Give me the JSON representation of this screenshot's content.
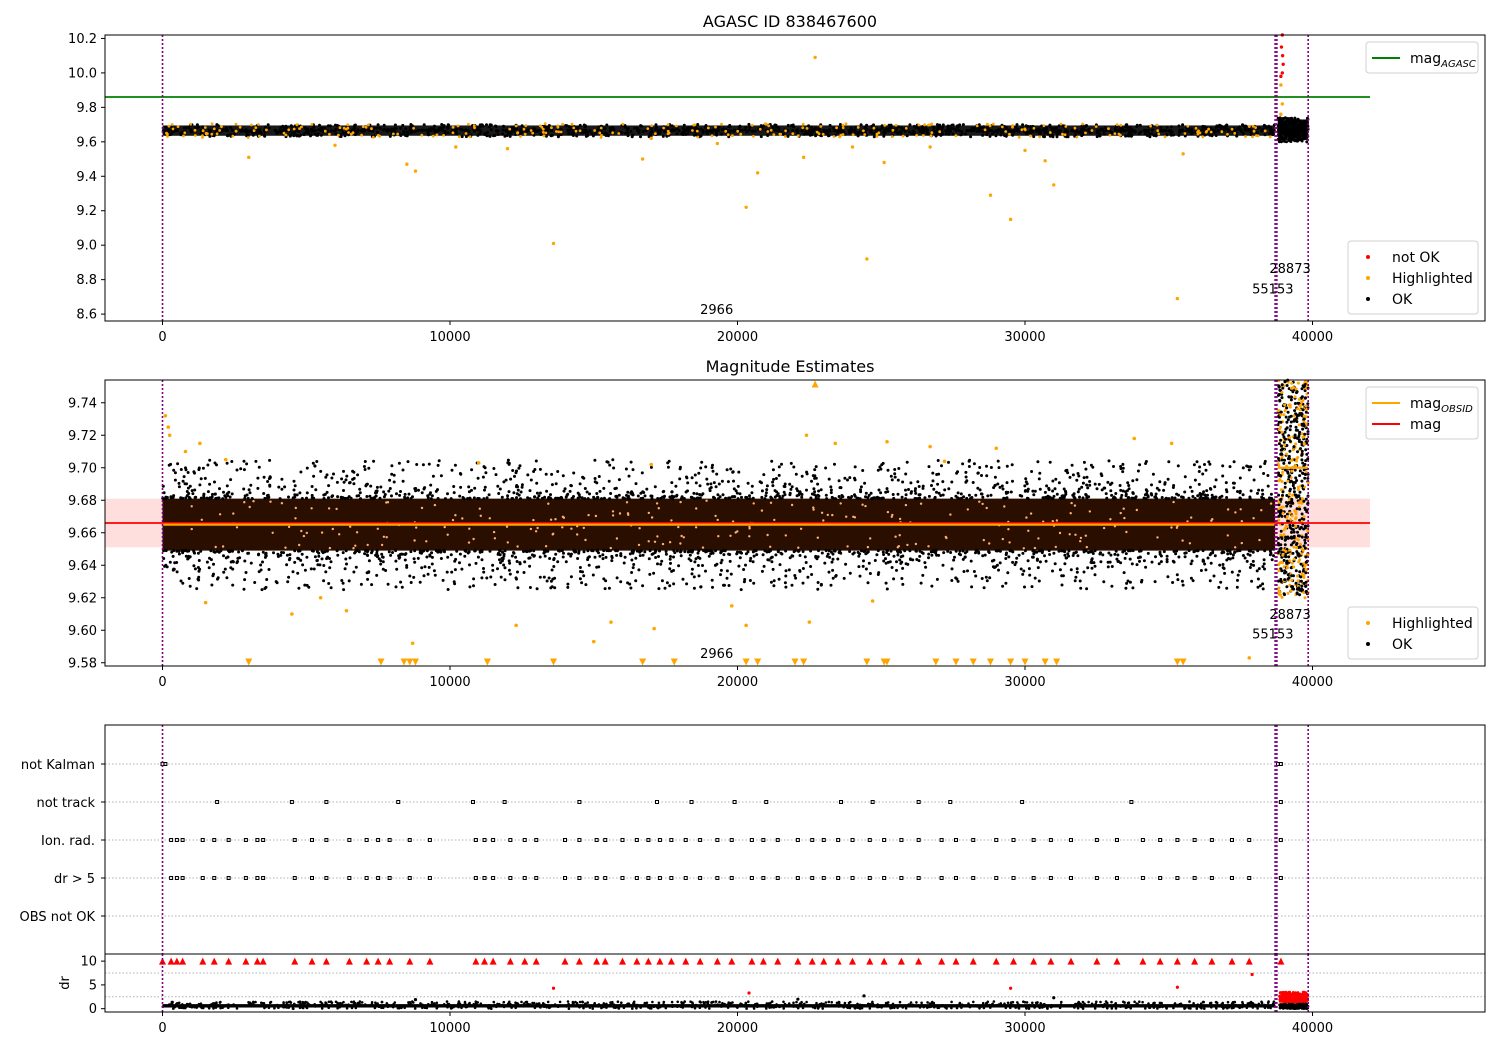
{
  "chart_data": [
    {
      "type": "scatter",
      "title": "AGASC ID 838467600",
      "xlim": [
        -2000,
        46000
      ],
      "ylim": [
        8.56,
        10.22
      ],
      "xticks": [
        "0",
        "10000",
        "20000",
        "30000",
        "40000"
      ],
      "yticks": [
        "8.6",
        "8.8",
        "9.0",
        "9.2",
        "9.4",
        "9.6",
        "9.8",
        "10.0",
        "10.2"
      ],
      "reference_lines": [
        {
          "name": "mag_AGASC",
          "value": 9.86,
          "color": "#008000",
          "x_range": [
            -2000,
            42000
          ]
        }
      ],
      "vertical_lines": [
        0,
        38700,
        38760,
        39850
      ],
      "annotations": [
        {
          "text": "2966",
          "x": 18700,
          "y": 8.6
        },
        {
          "text": "55153",
          "x": 37900,
          "y": 8.72
        },
        {
          "text": "28873",
          "x": 38500,
          "y": 8.84
        }
      ],
      "legend": {
        "position": "lower-right",
        "entries": [
          {
            "label": "not OK",
            "color": "#ff0000"
          },
          {
            "label": "Highlighted",
            "color": "#ffa500"
          },
          {
            "label": "OK",
            "color": "#000000"
          }
        ]
      },
      "legend2": {
        "position": "upper-right",
        "entries": [
          {
            "label": "mag",
            "sub": "AGASC",
            "color": "#008000"
          }
        ]
      },
      "series": [
        {
          "name": "OK",
          "color": "#000000",
          "band": {
            "x_range": [
              0,
              38700
            ],
            "center": 9.665,
            "half_width": 0.03
          }
        },
        {
          "name": "OK",
          "color": "#000000",
          "band": {
            "x_range": [
              38800,
              39850
            ],
            "center": 9.67,
            "half_width": 0.06
          }
        },
        {
          "name": "Highlighted",
          "color": "#ffa500",
          "points": [
            [
              3000,
              9.51
            ],
            [
              8500,
              9.47
            ],
            [
              8800,
              9.43
            ],
            [
              13600,
              9.01
            ],
            [
              16700,
              9.5
            ],
            [
              20300,
              9.22
            ],
            [
              20700,
              9.42
            ],
            [
              22700,
              10.09
            ],
            [
              22300,
              9.51
            ],
            [
              24500,
              8.92
            ],
            [
              25100,
              9.48
            ],
            [
              28800,
              9.29
            ],
            [
              29500,
              9.15
            ],
            [
              30700,
              9.49
            ],
            [
              31000,
              9.35
            ],
            [
              35300,
              8.69
            ],
            [
              35500,
              9.53
            ],
            [
              17000,
              9.62
            ],
            [
              24000,
              9.57
            ],
            [
              26700,
              9.57
            ],
            [
              30000,
              9.55
            ],
            [
              12000,
              9.56
            ],
            [
              6000,
              9.58
            ],
            [
              38900,
              9.93
            ],
            [
              38950,
              9.82
            ],
            [
              38900,
              9.76
            ],
            [
              19300,
              9.59
            ],
            [
              10200,
              9.57
            ]
          ]
        },
        {
          "name": "not OK",
          "color": "#ff0000",
          "points": [
            [
              38950,
              10.22
            ],
            [
              38920,
              10.15
            ],
            [
              38980,
              10.05
            ],
            [
              38950,
              10.0
            ],
            [
              38900,
              9.98
            ],
            [
              38960,
              10.1
            ]
          ]
        }
      ]
    },
    {
      "type": "scatter",
      "title": "Magnitude Estimates",
      "xlim": [
        -2000,
        46000
      ],
      "ylim": [
        9.578,
        9.754
      ],
      "xticks": [
        "0",
        "10000",
        "20000",
        "30000",
        "40000"
      ],
      "yticks": [
        "9.58",
        "9.60",
        "9.62",
        "9.64",
        "9.66",
        "9.68",
        "9.70",
        "9.72",
        "9.74"
      ],
      "reference_lines": [
        {
          "name": "mag",
          "value": 9.666,
          "color": "#ff0000",
          "x_range": [
            -2000,
            42000
          ],
          "band": [
            9.651,
            9.681
          ]
        },
        {
          "name": "mag_OBSID",
          "value": 9.665,
          "color": "#ffa500",
          "x_range": [
            0,
            38700
          ]
        },
        {
          "name": "mag_OBSID",
          "value": 9.7,
          "color": "#ffa500",
          "x_range": [
            38800,
            39850
          ]
        }
      ],
      "vertical_lines": [
        0,
        38700,
        38760,
        39850
      ],
      "annotations": [
        {
          "text": "2966",
          "x": 18700,
          "y": 9.583
        },
        {
          "text": "55153",
          "x": 37900,
          "y": 9.595
        },
        {
          "text": "28873",
          "x": 38500,
          "y": 9.607
        }
      ],
      "legend": {
        "position": "lower-right",
        "entries": [
          {
            "label": "Highlighted",
            "color": "#ffa500"
          },
          {
            "label": "OK",
            "color": "#000000"
          }
        ]
      },
      "legend2": {
        "position": "upper-right",
        "entries": [
          {
            "label": "mag",
            "sub": "OBSID",
            "color": "#ffa500"
          },
          {
            "label": "mag",
            "sub": "",
            "color": "#ff0000"
          }
        ]
      },
      "series": [
        {
          "name": "OK",
          "color": "#000000",
          "band": {
            "x_range": [
              0,
              38700
            ],
            "center": 9.665,
            "half_width": 0.016,
            "scatter_half_width": 0.035
          }
        },
        {
          "name": "OK",
          "color": "#000000",
          "band": {
            "x_range": [
              38800,
              39850
            ],
            "center": 9.69,
            "half_width": 0.06
          }
        },
        {
          "name": "Highlighted",
          "color": "#ffa500",
          "points": [
            [
              100,
              9.732
            ],
            [
              200,
              9.725
            ],
            [
              250,
              9.72
            ],
            [
              800,
              9.71
            ],
            [
              1300,
              9.715
            ],
            [
              2200,
              9.705
            ],
            [
              22400,
              9.72
            ],
            [
              23400,
              9.715
            ],
            [
              25200,
              9.716
            ],
            [
              26700,
              9.713
            ],
            [
              29000,
              9.712
            ],
            [
              33800,
              9.718
            ],
            [
              35100,
              9.715
            ],
            [
              4500,
              9.61
            ],
            [
              5500,
              9.62
            ],
            [
              12300,
              9.603
            ],
            [
              15000,
              9.593
            ],
            [
              15600,
              9.605
            ],
            [
              17100,
              9.601
            ],
            [
              20300,
              9.603
            ],
            [
              22500,
              9.605
            ],
            [
              8700,
              9.592
            ],
            [
              6400,
              9.612
            ],
            [
              19800,
              9.615
            ],
            [
              24700,
              9.618
            ],
            [
              37800,
              9.583
            ],
            [
              1500,
              9.617
            ],
            [
              11000,
              9.703
            ],
            [
              17000,
              9.702
            ],
            [
              27200,
              9.704
            ]
          ]
        },
        {
          "name": "Highlighted (clipped below)",
          "color": "#ffa500",
          "marker": "down-triangle",
          "x": [
            3000,
            7600,
            8400,
            8600,
            8800,
            11300,
            13600,
            16700,
            17800,
            20300,
            20700,
            22000,
            22300,
            24500,
            25100,
            25200,
            26900,
            27600,
            28200,
            28800,
            29500,
            30000,
            30700,
            31100,
            35300,
            35500
          ]
        },
        {
          "name": "Highlighted (clipped above)",
          "color": "#ffa500",
          "marker": "up-triangle",
          "x": [
            22700
          ]
        }
      ]
    },
    {
      "type": "scatter",
      "title": "",
      "xlim": [
        -2000,
        46000
      ],
      "categories": [
        "not Kalman",
        "not track",
        "Ion. rad.",
        "dr > 5",
        "OBS not OK"
      ],
      "vertical_lines": [
        0,
        38700,
        38760,
        39850
      ],
      "flags": [
        {
          "category": "not Kalman",
          "x": [
            0,
            100,
            38800,
            38900
          ]
        },
        {
          "category": "not track",
          "x": [
            1900,
            4500,
            5700,
            8200,
            10800,
            11900,
            14500,
            17200,
            18400,
            19900,
            21000,
            23600,
            24700,
            26300,
            27400,
            29900,
            33700,
            38900
          ]
        },
        {
          "category": "Ion. rad.",
          "x": [
            300,
            500,
            700,
            1400,
            1800,
            2300,
            2900,
            3300,
            3500,
            4600,
            5200,
            5700,
            6500,
            7100,
            7500,
            7900,
            8600,
            9300,
            10900,
            11200,
            11500,
            12100,
            12600,
            13000,
            14000,
            14500,
            15100,
            15400,
            16000,
            16500,
            16900,
            17300,
            17700,
            18200,
            18700,
            19300,
            19800,
            20500,
            20900,
            21400,
            22100,
            22600,
            23000,
            23500,
            24000,
            24600,
            25100,
            25700,
            26300,
            27100,
            27600,
            28200,
            29000,
            29600,
            30300,
            30900,
            31600,
            32500,
            33200,
            34100,
            34700,
            35300,
            35900,
            36500,
            37200,
            37800,
            38900
          ]
        },
        {
          "category": "dr > 5",
          "x": [
            300,
            500,
            700,
            1400,
            1800,
            2300,
            2900,
            3300,
            3500,
            4600,
            5200,
            5700,
            6500,
            7100,
            7500,
            7900,
            8600,
            9300,
            10900,
            11200,
            11500,
            12100,
            12600,
            13000,
            14000,
            14500,
            15100,
            15400,
            16000,
            16500,
            16900,
            17300,
            17700,
            18200,
            18700,
            19300,
            19800,
            20500,
            20900,
            21400,
            22100,
            22600,
            23000,
            23500,
            24000,
            24600,
            25100,
            25700,
            26300,
            27100,
            27600,
            28200,
            29000,
            29600,
            30300,
            30900,
            31600,
            32500,
            33200,
            34100,
            34700,
            35300,
            35900,
            36500,
            37200,
            37800,
            38900
          ]
        }
      ]
    },
    {
      "type": "scatter",
      "title": "",
      "ylabel": "dr",
      "xlim": [
        -2000,
        46000
      ],
      "ylim": [
        -0.7,
        11.5
      ],
      "xticks": [
        "0",
        "10000",
        "20000",
        "30000",
        "40000"
      ],
      "yticks": [
        "0",
        "5",
        "10"
      ],
      "vertical_lines": [
        0,
        38700,
        38760,
        39850
      ],
      "series": [
        {
          "name": "OK",
          "color": "#000000",
          "band": {
            "x_range": [
              0,
              38700
            ],
            "center": 0.6,
            "half_width": 0.6
          }
        },
        {
          "name": "not OK",
          "color": "#ff0000",
          "band": {
            "x_range": [
              38850,
              39850
            ],
            "center": 2.4,
            "half_width": 1.1
          }
        },
        {
          "name": "clipped",
          "color": "#ff0000",
          "marker": "up-triangle",
          "y": 10,
          "x": [
            0,
            300,
            500,
            700,
            1400,
            1800,
            2300,
            2900,
            3300,
            3500,
            4600,
            5200,
            5700,
            6500,
            7100,
            7500,
            7900,
            8600,
            9300,
            10900,
            11200,
            11500,
            12100,
            12600,
            13000,
            14000,
            14500,
            15100,
            15400,
            16000,
            16500,
            16900,
            17300,
            17700,
            18200,
            18700,
            19300,
            19800,
            20500,
            20900,
            21400,
            22100,
            22600,
            23000,
            23500,
            24000,
            24600,
            25100,
            25700,
            26300,
            27100,
            27600,
            28200,
            29000,
            29600,
            30300,
            30900,
            31600,
            32500,
            33200,
            34100,
            34700,
            35300,
            35900,
            36500,
            37200,
            37800,
            38900
          ]
        },
        {
          "name": "outliers",
          "color": "#ff0000",
          "points": [
            [
              13600,
              4.3
            ],
            [
              20400,
              3.3
            ],
            [
              29500,
              4.3
            ],
            [
              35300,
              4.5
            ],
            [
              37900,
              7.2
            ]
          ]
        },
        {
          "name": "outliers",
          "color": "#000000",
          "points": [
            [
              24400,
              2.7
            ],
            [
              31000,
              2.3
            ],
            [
              8800,
              1.9
            ],
            [
              22100,
              2.0
            ]
          ]
        }
      ]
    }
  ]
}
